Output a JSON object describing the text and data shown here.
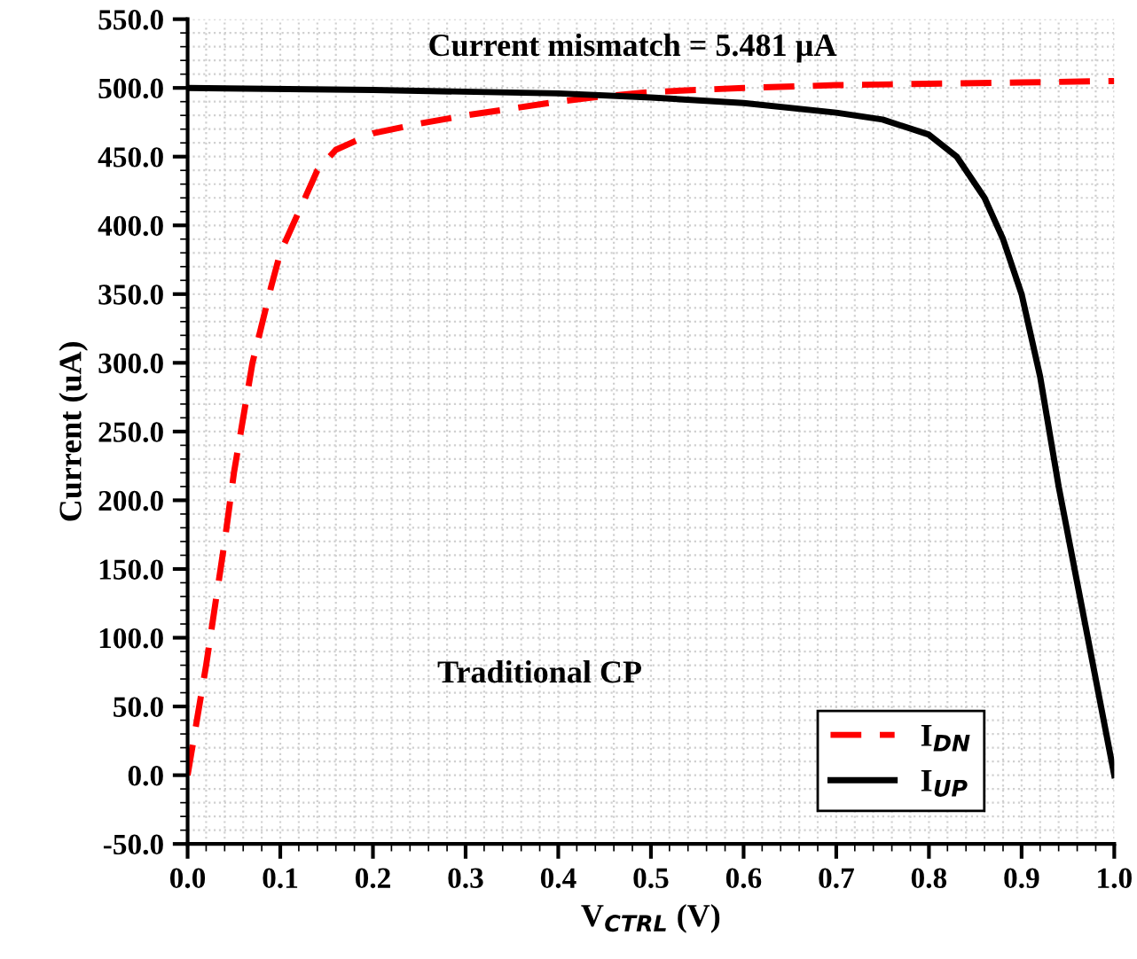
{
  "chart_data": {
    "type": "line",
    "xlabel": "V$_{CTRL}$ (V)",
    "ylabel": "Current (uA)",
    "annotations": [
      "Current mismatch = 5.481 µA",
      "Traditional CP"
    ],
    "series": [
      {
        "name": "I$_{DN}$",
        "color": "#ff0000",
        "line_style": "dashed",
        "x": [
          0,
          0.02,
          0.04,
          0.05,
          0.07,
          0.09,
          0.1,
          0.12,
          0.14,
          0.16,
          0.2,
          0.25,
          0.3,
          0.35,
          0.4,
          0.45,
          0.5,
          0.6,
          0.7,
          0.8,
          0.9,
          1.0
        ],
        "values": [
          0,
          80,
          170,
          220,
          300,
          355,
          380,
          410,
          440,
          455,
          467,
          474,
          480,
          485,
          490,
          494,
          497,
          500,
          502,
          503,
          504,
          505
        ]
      },
      {
        "name": "I$_{UP}$",
        "color": "#000000",
        "line_style": "solid",
        "x": [
          0,
          0.2,
          0.4,
          0.5,
          0.6,
          0.7,
          0.75,
          0.8,
          0.83,
          0.86,
          0.88,
          0.9,
          0.92,
          0.94,
          0.96,
          0.98,
          1.0
        ],
        "values": [
          500,
          498.5,
          496,
          493,
          489,
          482,
          477,
          466,
          450,
          420,
          390,
          350,
          290,
          210,
          140,
          70,
          0
        ]
      }
    ],
    "xlim": [
      0,
      1.0
    ],
    "xticks": [
      {
        "value": 0,
        "label": "0.0"
      },
      0.1,
      0.2,
      0.3,
      0.4,
      0.5,
      0.6,
      0.7,
      0.8,
      0.9,
      {
        "value": 1,
        "label": "1.0"
      }
    ],
    "ylim": [
      -50,
      550
    ],
    "yticks": [
      {
        "value": -50,
        "label": "-50.0"
      },
      {
        "value": 0,
        "label": "0.0"
      },
      {
        "value": 50,
        "label": "50.0"
      },
      {
        "value": 100,
        "label": "100.0"
      },
      {
        "value": 150,
        "label": "150.0"
      },
      {
        "value": 200,
        "label": "200.0"
      },
      {
        "value": 250,
        "label": "250.0"
      },
      {
        "value": 300,
        "label": "300.0"
      },
      {
        "value": 350,
        "label": "350.0"
      },
      {
        "value": 400,
        "label": "400.0"
      },
      {
        "value": 450,
        "label": "450.0"
      },
      {
        "value": 500,
        "label": "500.0"
      },
      {
        "value": 550,
        "label": "550.0"
      }
    ],
    "grid": true,
    "legend": "bottom right",
    "marker": "none"
  }
}
